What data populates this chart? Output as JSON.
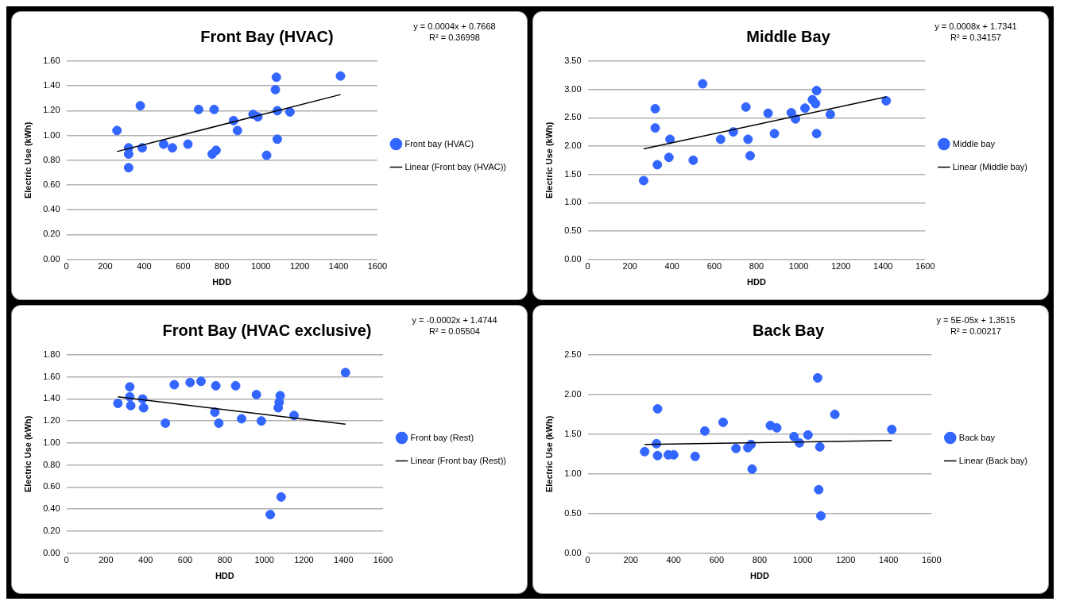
{
  "chart_data": [
    {
      "type": "scatter",
      "title": "Front Bay (HVAC)",
      "xlabel": "HDD",
      "ylabel": "Electric Use (kWh)",
      "xlim": [
        0,
        1600
      ],
      "xticks": [
        0,
        200,
        400,
        600,
        800,
        1000,
        1200,
        1400,
        1600
      ],
      "ylim": [
        0,
        1.6
      ],
      "yticks": [
        {
          "value": 0,
          "label": "0.00"
        },
        {
          "value": 0.2,
          "label": "0.20"
        },
        {
          "value": 0.4,
          "label": "0.40"
        },
        {
          "value": 0.6,
          "label": "0.60"
        },
        {
          "value": 0.8,
          "label": "0.80"
        },
        {
          "value": 1.0,
          "label": "1.00"
        },
        {
          "value": 1.2,
          "label": "1.20"
        },
        {
          "value": 1.4,
          "label": "1.40"
        },
        {
          "value": 1.6,
          "label": "1.60"
        }
      ],
      "grid": "y",
      "legend": "right",
      "marker": "circle",
      "annotations": [
        "y = 0.0004x + 0.7668",
        "R² = 0.36998"
      ],
      "series": [
        {
          "name": "Front bay (HVAC)",
          "color": "#3366ff",
          "x": [
            260,
            320,
            320,
            320,
            380,
            390,
            500,
            545,
            625,
            680,
            760,
            750,
            770,
            860,
            880,
            960,
            985,
            1030,
            1075,
            1080,
            1085,
            1085,
            1150,
            1410
          ],
          "values": [
            1.04,
            0.9,
            0.85,
            0.74,
            1.24,
            0.9,
            0.93,
            0.9,
            0.93,
            1.21,
            1.21,
            0.85,
            0.88,
            1.12,
            1.04,
            1.17,
            1.15,
            0.84,
            1.37,
            1.47,
            1.2,
            0.97,
            1.19,
            1.48
          ]
        },
        {
          "name": "Linear (Front bay (HVAC))",
          "type": "line",
          "marker": "none",
          "color": "#000000",
          "x": [
            260,
            1410
          ],
          "values": [
            0.87,
            1.33
          ]
        }
      ]
    },
    {
      "type": "scatter",
      "title": "Middle Bay",
      "xlabel": "HDD",
      "ylabel": "Electric Use (kWh)",
      "xlim": [
        0,
        1600
      ],
      "xticks": [
        0,
        200,
        400,
        600,
        800,
        1000,
        1200,
        1400,
        1600
      ],
      "ylim": [
        0,
        3.5
      ],
      "yticks": [
        {
          "value": 0,
          "label": "0.00"
        },
        {
          "value": 0.5,
          "label": "0.50"
        },
        {
          "value": 1.0,
          "label": "1.00"
        },
        {
          "value": 1.5,
          "label": "1.50"
        },
        {
          "value": 2.0,
          "label": "2.00"
        },
        {
          "value": 2.5,
          "label": "2.50"
        },
        {
          "value": 3.0,
          "label": "3.00"
        },
        {
          "value": 3.5,
          "label": "3.50"
        }
      ],
      "grid": "y",
      "legend": "right",
      "marker": "circle",
      "annotations": [
        "y = 0.0008x + 1.7341",
        "R² = 0.34157"
      ],
      "series": [
        {
          "name": "Middle bay",
          "color": "#3366ff",
          "x": [
            265,
            320,
            320,
            330,
            385,
            390,
            500,
            545,
            630,
            690,
            750,
            760,
            770,
            855,
            885,
            965,
            985,
            1030,
            1065,
            1080,
            1085,
            1085,
            1150,
            1415
          ],
          "values": [
            1.39,
            2.66,
            2.32,
            1.67,
            1.8,
            2.12,
            1.75,
            3.1,
            2.12,
            2.25,
            2.69,
            2.12,
            1.83,
            2.58,
            2.22,
            2.59,
            2.48,
            2.67,
            2.82,
            2.75,
            2.98,
            2.22,
            2.56,
            2.8
          ]
        },
        {
          "name": "Linear (Middle bay)",
          "type": "line",
          "marker": "none",
          "color": "#000000",
          "x": [
            265,
            1415
          ],
          "values": [
            1.95,
            2.87
          ]
        }
      ]
    },
    {
      "type": "scatter",
      "title": "Front Bay (HVAC exclusive)",
      "xlabel": "HDD",
      "ylabel": "Electric Use (kWh)",
      "xlim": [
        0,
        1600
      ],
      "xticks": [
        0,
        200,
        400,
        600,
        800,
        1000,
        1200,
        1400,
        1600
      ],
      "ylim": [
        0,
        1.8
      ],
      "yticks": [
        {
          "value": 0,
          "label": "0.00"
        },
        {
          "value": 0.2,
          "label": "0.20"
        },
        {
          "value": 0.4,
          "label": "0.40"
        },
        {
          "value": 0.6,
          "label": "0.60"
        },
        {
          "value": 0.8,
          "label": "0.80"
        },
        {
          "value": 1.0,
          "label": "1.00"
        },
        {
          "value": 1.2,
          "label": "1.20"
        },
        {
          "value": 1.4,
          "label": "1.40"
        },
        {
          "value": 1.6,
          "label": "1.60"
        },
        {
          "value": 1.8,
          "label": "1.80"
        }
      ],
      "grid": "y",
      "legend": "right",
      "marker": "circle",
      "annotations": [
        "y = -0.0002x + 1.4744",
        "R² = 0.05504"
      ],
      "series": [
        {
          "name": "Front bay (Rest)",
          "color": "#3366ff",
          "x": [
            260,
            320,
            320,
            325,
            385,
            390,
            500,
            545,
            625,
            680,
            750,
            755,
            770,
            855,
            885,
            960,
            985,
            1030,
            1070,
            1075,
            1080,
            1085,
            1150,
            1410
          ],
          "values": [
            1.36,
            1.51,
            1.42,
            1.34,
            1.4,
            1.32,
            1.18,
            1.53,
            1.55,
            1.56,
            1.28,
            1.52,
            1.18,
            1.52,
            1.22,
            1.44,
            1.2,
            0.35,
            1.32,
            1.37,
            1.43,
            0.51,
            1.25,
            1.64
          ]
        },
        {
          "name": "Linear (Front bay (Rest))",
          "type": "line",
          "marker": "none",
          "color": "#000000",
          "x": [
            260,
            1410
          ],
          "values": [
            1.42,
            1.17
          ]
        }
      ]
    },
    {
      "type": "scatter",
      "title": "Back Bay",
      "xlabel": "HDD",
      "ylabel": "Electric Use (kWh)",
      "xlim": [
        0,
        1600
      ],
      "xticks": [
        0,
        200,
        400,
        600,
        800,
        1000,
        1200,
        1400,
        1600
      ],
      "ylim": [
        0,
        2.5
      ],
      "yticks": [
        {
          "value": 0,
          "label": "0.00"
        },
        {
          "value": 0.5,
          "label": "0.50"
        },
        {
          "value": 1.0,
          "label": "1.00"
        },
        {
          "value": 1.5,
          "label": "1.50"
        },
        {
          "value": 2.0,
          "label": "2.00"
        },
        {
          "value": 2.5,
          "label": "2.50"
        }
      ],
      "grid": "y",
      "legend": "right",
      "marker": "circle",
      "annotations": [
        "y = 5E-05x + 1.3515",
        "R² = 0.00217"
      ],
      "series": [
        {
          "name": "Back bay",
          "color": "#3366ff",
          "x": [
            265,
            320,
            325,
            325,
            375,
            400,
            500,
            545,
            630,
            690,
            745,
            760,
            765,
            850,
            880,
            960,
            985,
            1025,
            1070,
            1075,
            1080,
            1085,
            1150,
            1415
          ],
          "values": [
            1.28,
            1.38,
            1.82,
            1.23,
            1.24,
            1.24,
            1.22,
            1.54,
            1.65,
            1.32,
            1.33,
            1.37,
            1.06,
            1.61,
            1.58,
            1.47,
            1.39,
            1.49,
            2.21,
            0.8,
            1.34,
            0.47,
            1.75,
            1.56
          ]
        },
        {
          "name": "Linear (Back bay)",
          "type": "line",
          "marker": "none",
          "color": "#000000",
          "x": [
            265,
            1415
          ],
          "values": [
            1.37,
            1.42
          ]
        }
      ]
    }
  ]
}
